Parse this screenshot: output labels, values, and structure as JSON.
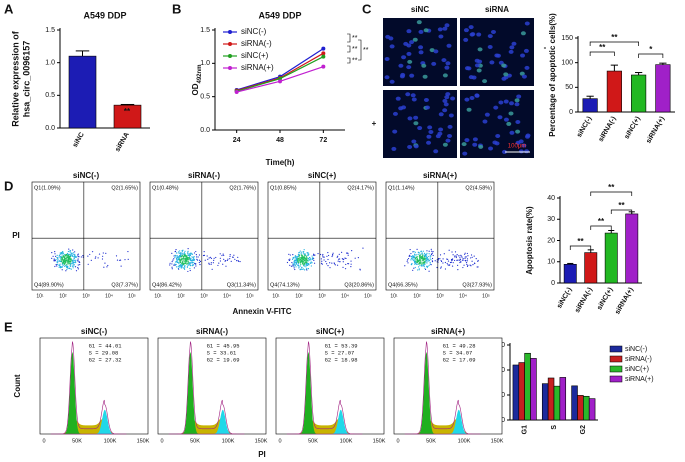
{
  "figure": {
    "panels": [
      "A",
      "B",
      "C",
      "D",
      "E"
    ]
  },
  "chart_data": [
    {
      "type": "bar",
      "title": "A549 DDP",
      "ylabel": [
        "Relative expression of",
        "hsa_circ_0096157"
      ],
      "categories": [
        "siNC",
        "siRNA"
      ],
      "values": [
        1.1,
        0.35
      ],
      "errors": [
        0.08,
        0.01
      ],
      "colors": [
        "#1c1cb4",
        "#d01818"
      ],
      "ylim": [
        0,
        1.5
      ],
      "yticks": [
        {
          "value": 0,
          "label": "0.0"
        },
        {
          "value": 0.5,
          "label": "0.5"
        },
        {
          "value": 1,
          "label": "1.0"
        },
        {
          "value": 1.5,
          "label": "1.5"
        }
      ],
      "annotations": [
        "**"
      ]
    },
    {
      "type": "line",
      "title": "A549 DDP",
      "ylabel": "OD",
      "ylabel_sub": "492nm",
      "xlabel": "Time(h)",
      "x": [
        24,
        48,
        72
      ],
      "xlim": [
        12,
        84
      ],
      "xticks": [
        24,
        48,
        72
      ],
      "ylim": [
        0,
        1.5
      ],
      "yticks": [
        {
          "value": 0,
          "label": "0.0"
        },
        {
          "value": 0.5,
          "label": "0.5"
        },
        {
          "value": 1,
          "label": "1.0"
        },
        {
          "value": 1.5,
          "label": "1.5"
        }
      ],
      "legend": "upper left",
      "series": [
        {
          "name": "siNC(-)",
          "color": "#1f1fd0",
          "values": [
            0.6,
            0.8,
            1.22
          ]
        },
        {
          "name": "siRNA(-)",
          "color": "#d01818",
          "values": [
            0.59,
            0.78,
            1.15
          ]
        },
        {
          "name": "siNC(+)",
          "color": "#20a020",
          "values": [
            0.58,
            0.77,
            1.1
          ]
        },
        {
          "name": "siRNA(+)",
          "color": "#c020d0",
          "values": [
            0.57,
            0.73,
            0.95
          ]
        }
      ],
      "annotations": [
        "**",
        "**",
        "**",
        "**"
      ]
    },
    {
      "type": "bar",
      "ylabel": "Percentage of apoptotic cells(%)",
      "categories": [
        "siNC(-)",
        "siRNA(-)",
        "siNC(+)",
        "siRNA(+)"
      ],
      "values": [
        27,
        83,
        75,
        96
      ],
      "errors": [
        5,
        12,
        5,
        3
      ],
      "colors": [
        "#1c1cb4",
        "#d01818",
        "#22b822",
        "#a020c8"
      ],
      "ylim": [
        0,
        150
      ],
      "yticks": [
        0,
        50,
        100,
        150
      ],
      "annotations": [
        "**",
        "**",
        "*"
      ]
    },
    {
      "type": "bar",
      "ylabel": "Apoptosis rate(%)",
      "categories": [
        "siNC(-)",
        "siRNA(-)",
        "siNC(+)",
        "siRNA(+)"
      ],
      "values": [
        8.8,
        14.3,
        23.5,
        32.5
      ],
      "errors": [
        0.4,
        1.3,
        1.2,
        1.0
      ],
      "colors": [
        "#1c1cb4",
        "#d01818",
        "#22b822",
        "#a020c8"
      ],
      "ylim": [
        0,
        40
      ],
      "yticks": [
        0,
        10,
        20,
        30,
        40
      ],
      "annotations": [
        "**",
        "**",
        "**",
        "**"
      ]
    },
    {
      "type": "bar",
      "ylabel": "% of cells in cell cycle",
      "categories": [
        "G1",
        "S",
        "G2"
      ],
      "ylim": [
        0,
        60
      ],
      "yticks": [
        0,
        20,
        40,
        60
      ],
      "legend": "right",
      "series": [
        {
          "name": "siNC(-)",
          "color": "#1c2a9c",
          "values": [
            44.01,
            29.08,
            27.32
          ]
        },
        {
          "name": "siRNA(-)",
          "color": "#c62020",
          "values": [
            45.95,
            33.61,
            19.69
          ]
        },
        {
          "name": "siNC(+)",
          "color": "#2ab82a",
          "values": [
            53.39,
            27.07,
            18.98
          ]
        },
        {
          "name": "siRNA(+)",
          "color": "#a020c8",
          "values": [
            49.28,
            34.07,
            17.09
          ]
        }
      ]
    }
  ],
  "microscopy": {
    "columns": [
      "siNC",
      "siRNA"
    ],
    "rows": [
      "-",
      "+"
    ],
    "scale_bar": "100μm"
  },
  "flow": {
    "x_label": "Annexin V-FITC",
    "y_label": "PI",
    "ticks": [
      "10¹",
      "10²",
      "10³",
      "10⁴",
      "10⁵"
    ],
    "panels": [
      {
        "title": "siNC(-)",
        "quadrants": [
          "Q1(1.09%)",
          "Q2(1.65%)",
          "Q4(89.90%)",
          "Q3(7.37%)"
        ]
      },
      {
        "title": "siRNA(-)",
        "quadrants": [
          "Q1(0.48%)",
          "Q2(1.76%)",
          "Q4(86.42%)",
          "Q3(11.34%)"
        ]
      },
      {
        "title": "siNC(+)",
        "quadrants": [
          "Q1(0.85%)",
          "Q2(4.17%)",
          "Q4(74.13%)",
          "Q3(20.86%)"
        ]
      },
      {
        "title": "siRNA(+)",
        "quadrants": [
          "Q1(1.14%)",
          "Q2(4.58%)",
          "Q4(66.35%)",
          "Q3(27.93%)"
        ]
      }
    ]
  },
  "cell_cycle": {
    "x_label": "PI",
    "y_label": "Count",
    "ticks": [
      "0",
      "50K",
      "100K",
      "150K"
    ],
    "panels": [
      {
        "title": "siNC(-)",
        "stats": [
          "G1 = 44.01",
          "S = 29.08",
          "G2 = 27.32"
        ]
      },
      {
        "title": "siRNA(-)",
        "stats": [
          "G1 = 45.95",
          "S = 33.61",
          "G2 = 19.69"
        ]
      },
      {
        "title": "siNC(+)",
        "stats": [
          "G1 = 53.39",
          "S = 27.07",
          "G2 = 18.98"
        ]
      },
      {
        "title": "siRNA(+)",
        "stats": [
          "G1 = 49.28",
          "S = 34.07",
          "G2 = 17.09"
        ]
      }
    ]
  }
}
